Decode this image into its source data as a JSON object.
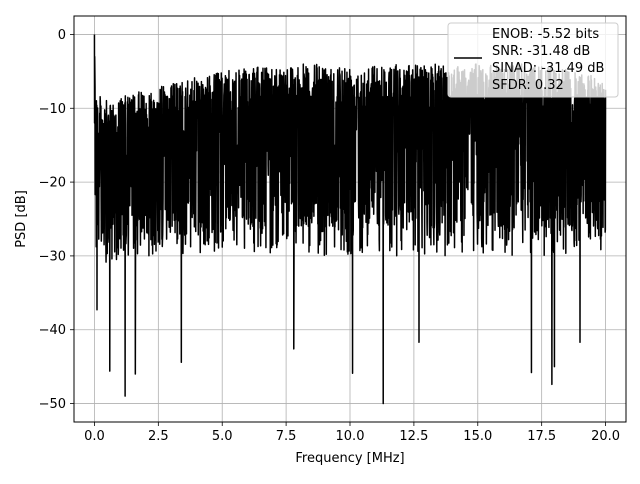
{
  "chart_data": {
    "type": "line",
    "title": "",
    "xlabel": "Frequency [MHz]",
    "ylabel": "PSD [dB]",
    "xlim": [
      -0.8,
      20.8
    ],
    "ylim": [
      -52.5,
      2.5
    ],
    "xticks": [
      0.0,
      2.5,
      5.0,
      7.5,
      10.0,
      12.5,
      15.0,
      17.5,
      20.0
    ],
    "xtick_labels": [
      "0.0",
      "2.5",
      "5.0",
      "7.5",
      "10.0",
      "12.5",
      "15.0",
      "17.5",
      "20.0"
    ],
    "yticks": [
      0,
      -10,
      -20,
      -30,
      -40,
      -50
    ],
    "ytick_labels": [
      "0",
      "−10",
      "−20",
      "−30",
      "−40",
      "−50"
    ],
    "grid": true,
    "legend_position": "top-right",
    "legend": [
      "ENOB: -5.52 bits",
      "SNR: -31.48 dB",
      "SINAD: -31.49 dB",
      "SFDR: 0.32"
    ],
    "series": [
      {
        "color": "#000000",
        "note_upper_envelope": [
          [
            0.0,
            0.0
          ],
          [
            0.1,
            -8
          ],
          [
            0.5,
            -9
          ],
          [
            2.5,
            -7
          ],
          [
            5.0,
            -5
          ],
          [
            7.5,
            -4
          ],
          [
            10.0,
            -4
          ],
          [
            12.5,
            -4
          ],
          [
            15.0,
            -4
          ],
          [
            17.5,
            -4
          ],
          [
            20.0,
            -6
          ]
        ],
        "deep_minima": [
          [
            0.1,
            -37.3
          ],
          [
            0.6,
            -45.6
          ],
          [
            1.2,
            -49.0
          ],
          [
            1.6,
            -46.0
          ],
          [
            3.4,
            -44.4
          ],
          [
            7.8,
            -42.6
          ],
          [
            10.1,
            -45.9
          ],
          [
            11.3,
            -50.0
          ],
          [
            12.7,
            -41.7
          ],
          [
            17.1,
            -45.8
          ],
          [
            17.9,
            -47.4
          ],
          [
            18.0,
            -45.0
          ],
          [
            19.0,
            -41.7
          ]
        ],
        "x_start": 0.0,
        "x_end": 20.0
      }
    ]
  }
}
